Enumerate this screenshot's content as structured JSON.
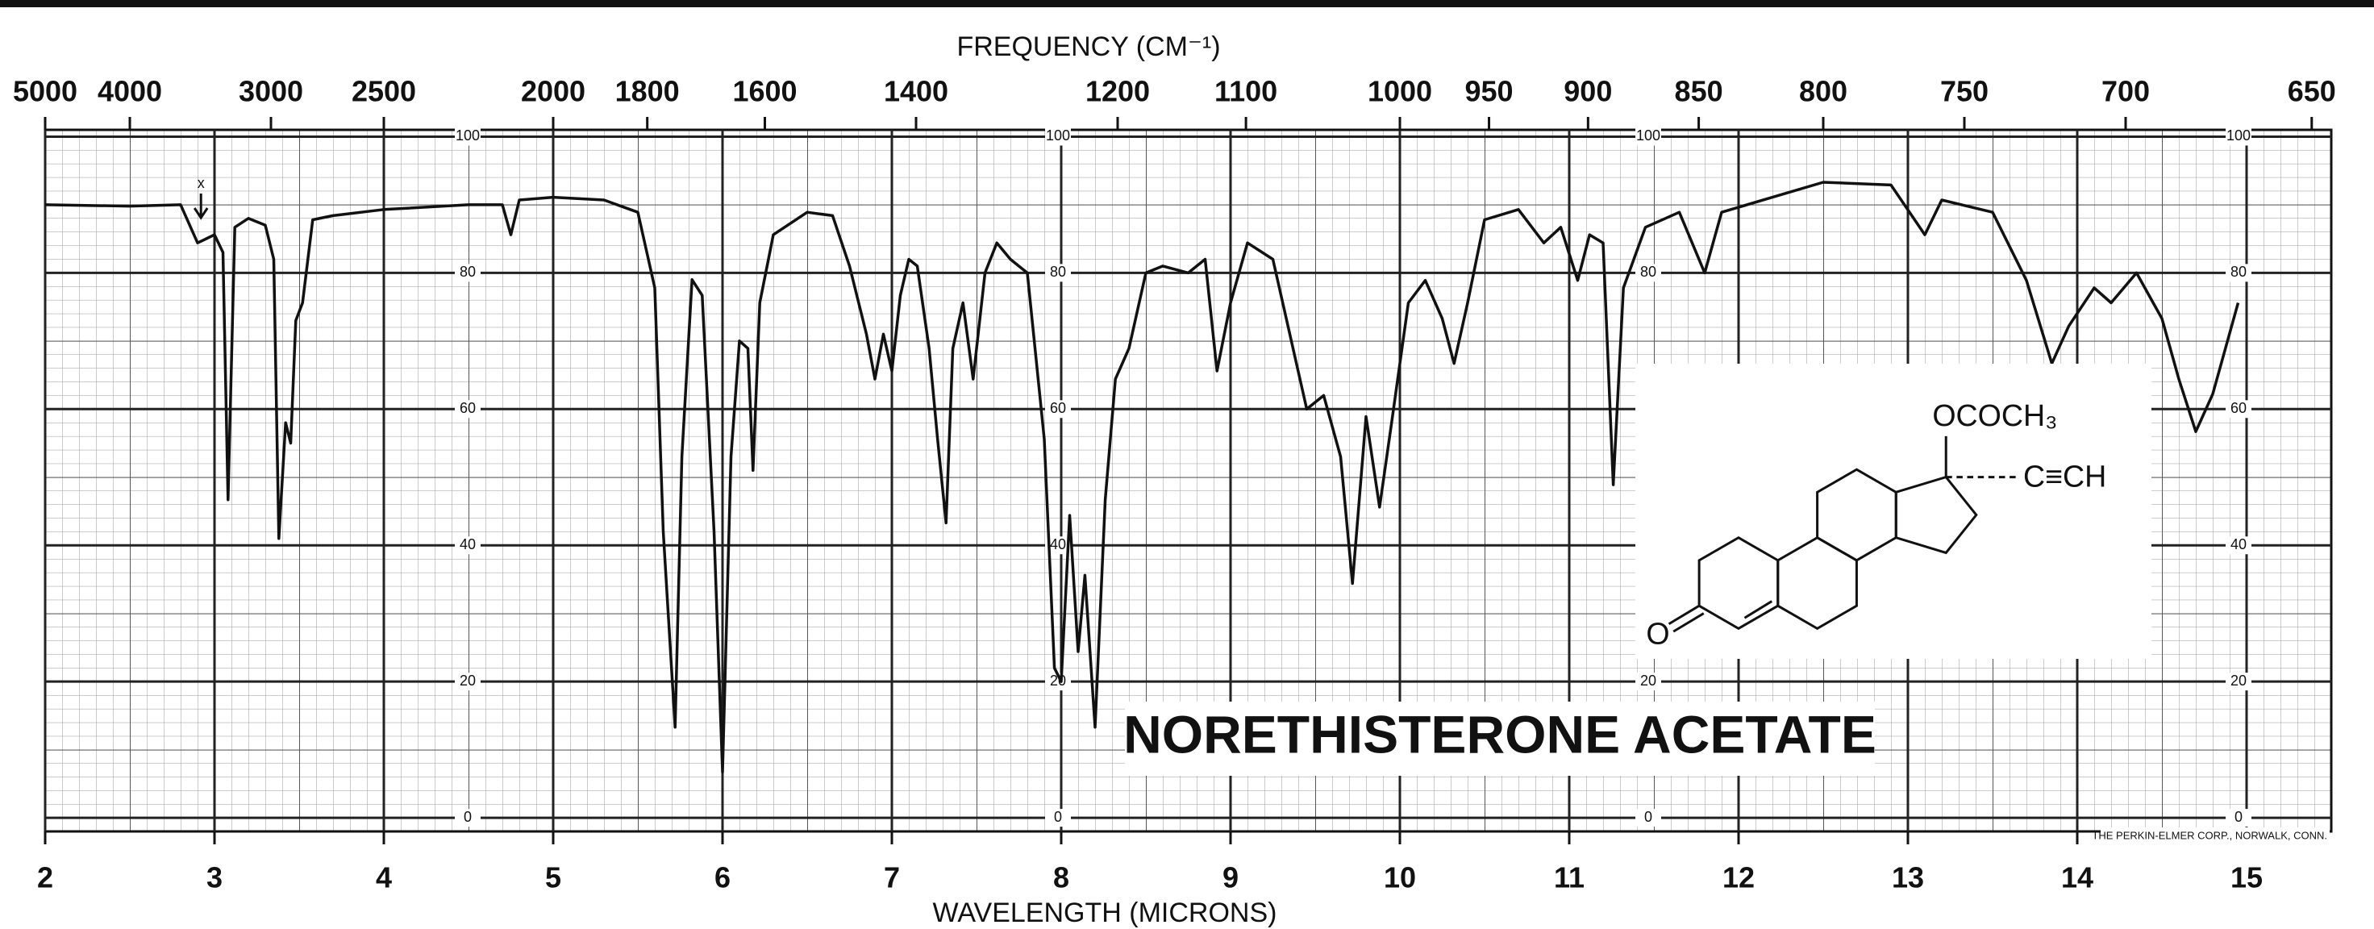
{
  "chart_data": {
    "type": "line",
    "title": "NORETHISTERONE ACETATE",
    "x_label": "WAVELENGTH (MICRONS)",
    "x2_label": "FREQUENCY (CM⁻¹)",
    "annotation": "x",
    "credit": "THE PERKIN-ELMER CORP., NORWALK, CONN.",
    "x": [
      2.0,
      2.5,
      2.8,
      2.9,
      3.0,
      3.05,
      3.08,
      3.12,
      3.2,
      3.3,
      3.35,
      3.38,
      3.42,
      3.45,
      3.48,
      3.52,
      3.58,
      3.7,
      4.0,
      4.5,
      4.7,
      4.75,
      4.8,
      5.0,
      5.3,
      5.5,
      5.6,
      5.65,
      5.72,
      5.76,
      5.82,
      5.88,
      5.95,
      6.0,
      6.05,
      6.1,
      6.15,
      6.18,
      6.22,
      6.3,
      6.5,
      6.65,
      6.75,
      6.85,
      6.9,
      6.95,
      7.0,
      7.05,
      7.1,
      7.15,
      7.22,
      7.27,
      7.32,
      7.36,
      7.42,
      7.48,
      7.55,
      7.62,
      7.7,
      7.8,
      7.9,
      7.96,
      8.0,
      8.05,
      8.1,
      8.14,
      8.2,
      8.26,
      8.32,
      8.4,
      8.5,
      8.6,
      8.75,
      8.85,
      8.92,
      9.0,
      9.1,
      9.25,
      9.35,
      9.45,
      9.55,
      9.65,
      9.72,
      9.8,
      9.88,
      9.95,
      10.05,
      10.15,
      10.25,
      10.32,
      10.4,
      10.5,
      10.7,
      10.85,
      10.95,
      11.05,
      11.12,
      11.2,
      11.26,
      11.32,
      11.45,
      11.65,
      11.8,
      11.9,
      12.2,
      12.5,
      12.9,
      13.1,
      13.2,
      13.5,
      13.7,
      13.85,
      13.95,
      14.1,
      14.2,
      14.35,
      14.5,
      14.6,
      14.7,
      14.8,
      14.95
    ],
    "series": [
      {
        "color": "#111111",
        "values": [
          90,
          89.8,
          90,
          84.4,
          85.6,
          83,
          46.7,
          86.7,
          88,
          87,
          82,
          41,
          58,
          55,
          73,
          75.6,
          87.8,
          88.4,
          89.3,
          90,
          90,
          85.6,
          90.7,
          91.1,
          90.7,
          88.9,
          77.8,
          42,
          13.3,
          53,
          79,
          76.7,
          42,
          6.7,
          53,
          70,
          68.9,
          51,
          75.6,
          85.6,
          88.9,
          88.4,
          81,
          71,
          64.4,
          71,
          65.6,
          76.7,
          82,
          81,
          68.9,
          55.6,
          43.3,
          68.9,
          75.6,
          64.4,
          80,
          84.4,
          82,
          80,
          55.6,
          22,
          20,
          44.4,
          24.4,
          35.6,
          13.3,
          46.7,
          64.4,
          68.9,
          80,
          81,
          80,
          82,
          65.6,
          75.6,
          84.4,
          82,
          71,
          60,
          62,
          53,
          34.4,
          58.9,
          45.6,
          57.8,
          75.6,
          78.9,
          73.3,
          66.7,
          75.6,
          87.8,
          89.3,
          84.4,
          86.7,
          78.9,
          85.6,
          84.4,
          48.9,
          77.8,
          86.7,
          88.9,
          80,
          88.9,
          91.1,
          93.3,
          92.9,
          85.6,
          90.7,
          88.9,
          78.9,
          66.7,
          72.2,
          77.8,
          75.6,
          80,
          73.3,
          64.4,
          56.7,
          62.2,
          75.6
        ]
      }
    ],
    "xlim": [
      2,
      15.5
    ],
    "xticks": [
      2,
      3,
      4,
      5,
      6,
      7,
      8,
      9,
      10,
      11,
      12,
      13,
      14,
      15
    ],
    "x2ticks": [
      5000,
      4000,
      3000,
      2500,
      2000,
      1800,
      1600,
      1400,
      1200,
      1100,
      1000,
      950,
      900,
      850,
      800,
      750,
      700,
      650
    ],
    "ylim": [
      -2,
      101
    ],
    "yticks": [
      0,
      20,
      40,
      60,
      80,
      100
    ],
    "grid": true
  },
  "structure": {
    "labels": [
      "OCOCH₃",
      "C≡CH",
      "O"
    ]
  }
}
